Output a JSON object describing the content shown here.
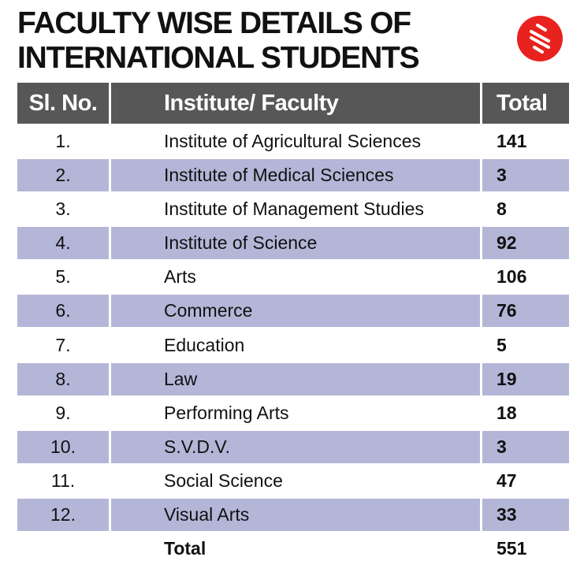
{
  "header": {
    "title_lines": [
      "FACULTY WISE DETAILS OF",
      "INTERNATIONAL STUDENTS"
    ]
  },
  "table": {
    "columns": [
      "Sl. No.",
      "Institute/ Faculty",
      "Total"
    ],
    "rows": [
      [
        "1.",
        "Institute of Agricultural Sciences",
        141
      ],
      [
        "2.",
        "Institute of Medical Sciences",
        3
      ],
      [
        "3.",
        "Institute of Management Studies",
        8
      ],
      [
        "4.",
        "Institute of Science",
        92
      ],
      [
        "5.",
        "Arts",
        106
      ],
      [
        "6.",
        "Commerce",
        76
      ],
      [
        "7.",
        "Education",
        5
      ],
      [
        "8.",
        "Law",
        19
      ],
      [
        "9.",
        "Performing Arts",
        18
      ],
      [
        "10.",
        "S.V.D.V.",
        3
      ],
      [
        "11.",
        "Social Science",
        47
      ],
      [
        "12.",
        "Visual Arts",
        33
      ]
    ],
    "total_row": [
      "Total",
      551
    ]
  }
}
